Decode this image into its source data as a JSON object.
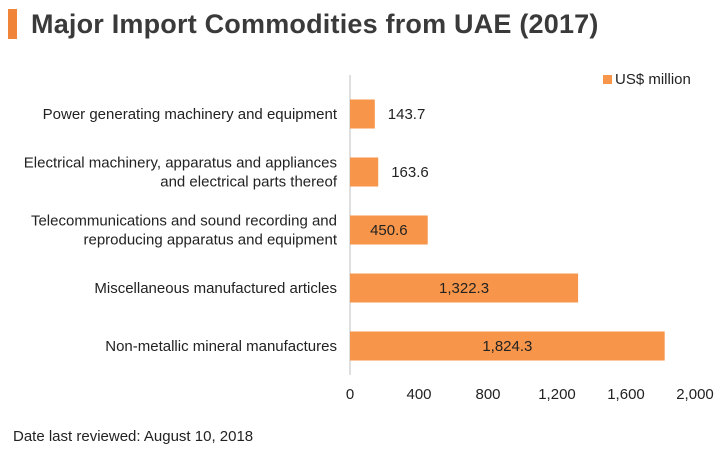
{
  "title": "Major Import Commodities from UAE (2017)",
  "footer": "Date last reviewed: August 10, 2018",
  "colors": {
    "accent": "#f0853a",
    "bar": "#f7964a"
  },
  "chart_data": {
    "type": "bar",
    "orientation": "horizontal",
    "categories": [
      [
        "Power generating machinery and equipment"
      ],
      [
        "Electrical machinery, apparatus and appliances",
        "and electrical parts thereof"
      ],
      [
        "Telecommunications and sound recording and",
        "reproducing apparatus and equipment"
      ],
      [
        "Miscellaneous manufactured articles"
      ],
      [
        "Non-metallic mineral manufactures"
      ]
    ],
    "series": [
      {
        "name": "US$ million",
        "values": [
          143.7,
          163.6,
          450.6,
          1322.3,
          1824.3
        ],
        "labels": [
          "143.7",
          "163.6",
          "450.6",
          "1,322.3",
          "1,824.3"
        ]
      }
    ],
    "xlim": [
      0,
      2000
    ],
    "xticks": [
      0,
      400,
      800,
      1200,
      1600,
      2000
    ],
    "xtick_labels": [
      "0",
      "400",
      "800",
      "1,200",
      "1,600",
      "2,000"
    ],
    "legend_position": "top-right",
    "grid": false
  }
}
